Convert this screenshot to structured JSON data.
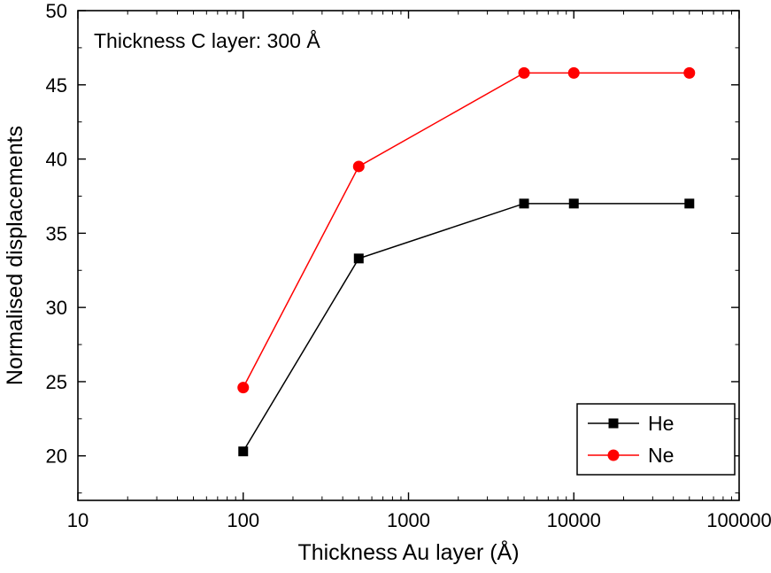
{
  "chart_data": {
    "type": "line",
    "annotation": "Thickness C layer: 300 Å",
    "xlabel": "Thickness Au layer (Å)",
    "ylabel": "Normalised displacements",
    "x_scale": "log",
    "xlim": [
      10,
      100000
    ],
    "ylim": [
      17,
      50
    ],
    "x_major_ticks": [
      10,
      100,
      1000,
      10000,
      100000
    ],
    "x_tick_labels": [
      "10",
      "100",
      "1000",
      "10000",
      "100000"
    ],
    "y_major_ticks": [
      20,
      25,
      30,
      35,
      40,
      45,
      50
    ],
    "y_minor_step": 2.5,
    "grid": false,
    "legend_position": "bottom-right",
    "series": [
      {
        "name": "He",
        "color": "#000000",
        "marker": "square",
        "x": [
          100,
          500,
          5000,
          10000,
          50000
        ],
        "y": [
          20.3,
          33.3,
          37.0,
          37.0,
          37.0
        ]
      },
      {
        "name": "Ne",
        "color": "#ff0000",
        "marker": "circle",
        "x": [
          100,
          500,
          5000,
          10000,
          50000
        ],
        "y": [
          24.6,
          39.5,
          45.8,
          45.8,
          45.8
        ]
      }
    ]
  },
  "colors": {
    "background": "#ffffff",
    "axis": "#000000",
    "he_series": "#000000",
    "ne_series": "#ff0000"
  }
}
